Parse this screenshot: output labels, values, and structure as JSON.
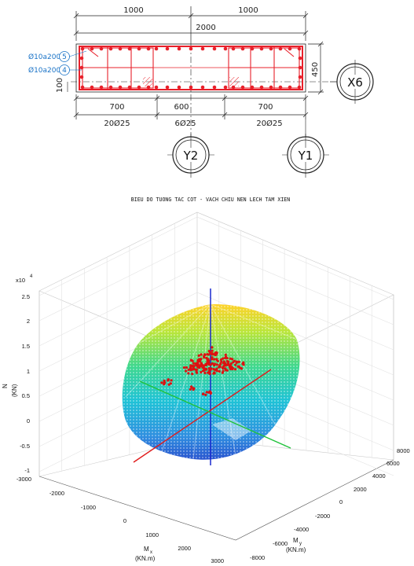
{
  "drawing": {
    "dims_top": [
      "1000",
      "1000"
    ],
    "dim_total": "2000",
    "dims_bottom": [
      "700",
      "600",
      "700"
    ],
    "rebar_groups": [
      "20Ø25",
      "6Ø25",
      "20Ø25"
    ],
    "dim_height": "450",
    "dim_cover": "100",
    "stirrup_labels": [
      {
        "text": "Ø10a200",
        "mark": "5"
      },
      {
        "text": "Ø10a200",
        "mark": "4"
      }
    ],
    "grid_axes": [
      "X6",
      "Y2",
      "Y1"
    ],
    "colors": {
      "section": "#e8202a",
      "stirrup_label": "#1a73c7",
      "dimension": "#222222"
    }
  },
  "chart_data": {
    "type": "3d-surface-scatter",
    "title": "BIEU DO TUONG TAC COT - VACH CHIU NEN LECH TAM XIEN",
    "exponent_label": "x10",
    "exponent_power": "4",
    "z_axis": {
      "label": "N",
      "unit": "(KN)",
      "ticks": [
        "-1",
        "-0.5",
        "0",
        "0.5",
        "1",
        "1.5",
        "2",
        "2.5"
      ],
      "range": [
        -10000,
        25000
      ]
    },
    "x_axis": {
      "label": "M",
      "sub": "x",
      "unit": "(KN.m)",
      "ticks": [
        "-3000",
        "-2000",
        "-1000",
        "0",
        "1000",
        "2000",
        "3000"
      ],
      "range": [
        -3000,
        3000
      ]
    },
    "y_axis": {
      "label": "M",
      "sub": "y",
      "unit": "(KN.m)",
      "ticks": [
        "-8000",
        "-6000",
        "-4000",
        "-2000",
        "0",
        "2000",
        "4000",
        "6000",
        "8000"
      ],
      "range": [
        -8000,
        8000
      ]
    },
    "surface": {
      "approx_N_range": [
        -7500,
        23000
      ],
      "colormap": "jet"
    },
    "load_cases": {
      "color": "#dd1111",
      "approx_N_range": [
        5000,
        14000
      ]
    },
    "grid": true
  }
}
